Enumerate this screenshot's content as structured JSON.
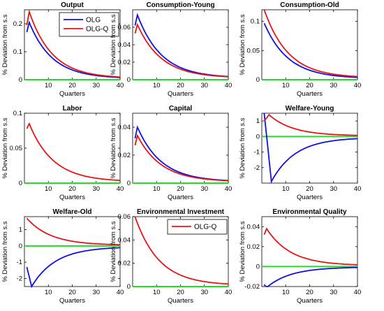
{
  "colors": {
    "OLG": "#1010e0",
    "OLG-Q": "#e61414",
    "zero": "#22dd22",
    "axis": "#000000"
  },
  "chart_data": [
    {
      "type": "line",
      "title": "Output",
      "xlabel": "Quarters",
      "ylabel": "% Deviation from s.s",
      "xlim": [
        0,
        40
      ],
      "ylim": [
        0,
        0.25
      ],
      "yticks": [
        0,
        0.1,
        0.2
      ],
      "xticks": [
        10,
        20,
        30,
        40
      ],
      "legend": {
        "position": "top-right",
        "entries": [
          "OLG",
          "OLG-Q"
        ]
      },
      "series": [
        {
          "name": "OLG",
          "peak": 0.205,
          "peak_q": 2,
          "start": 0.17,
          "end": 0.004,
          "decay": 0.104
        },
        {
          "name": "OLG-Q",
          "peak": 0.243,
          "peak_q": 2,
          "start": 0.195,
          "end": 0.005,
          "decay": 0.104
        }
      ]
    },
    {
      "type": "line",
      "title": "Consumption-Young",
      "xlabel": "Quarters",
      "ylabel": "% Deviation from s.s",
      "xlim": [
        0,
        40
      ],
      "ylim": [
        0,
        0.08
      ],
      "yticks": [
        0,
        0.02,
        0.04,
        0.06
      ],
      "xticks": [
        10,
        20,
        30,
        40
      ],
      "series": [
        {
          "name": "OLG",
          "peak": 0.074,
          "peak_q": 2,
          "start": 0.062,
          "end": 0.002,
          "decay": 0.1
        },
        {
          "name": "OLG-Q",
          "peak": 0.063,
          "peak_q": 2,
          "start": 0.053,
          "end": 0.002,
          "decay": 0.1
        }
      ]
    },
    {
      "type": "line",
      "title": "Consumption-Old",
      "xlabel": "Quarters",
      "ylabel": "% Deviation from s.s",
      "xlim": [
        0,
        40
      ],
      "ylim": [
        0,
        0.12
      ],
      "yticks": [
        0,
        0.05,
        0.1
      ],
      "xticks": [
        10,
        20,
        30,
        40
      ],
      "series": [
        {
          "name": "OLG",
          "peak": 0.097,
          "peak_q": 1,
          "start": 0.097,
          "end": 0.002,
          "decay": 0.1
        },
        {
          "name": "OLG-Q",
          "peak": 0.12,
          "peak_q": 1,
          "start": 0.12,
          "end": 0.003,
          "decay": 0.1
        }
      ]
    },
    {
      "type": "line",
      "title": "Labor",
      "xlabel": "Quarters",
      "ylabel": "% Deviation from s.s",
      "xlim": [
        0,
        40
      ],
      "ylim": [
        0,
        0.1
      ],
      "yticks": [
        0,
        0.05,
        0.1
      ],
      "xticks": [
        10,
        20,
        30,
        40
      ],
      "series": [
        {
          "name": "OLG-Q",
          "peak": 0.085,
          "peak_q": 2,
          "start": 0.078,
          "end": 0.002,
          "decay": 0.1
        }
      ]
    },
    {
      "type": "line",
      "title": "Capital",
      "xlabel": "Quarters",
      "ylabel": "% Deviation from s.s",
      "xlim": [
        0,
        40
      ],
      "ylim": [
        0,
        0.05
      ],
      "yticks": [
        0,
        0.02,
        0.04
      ],
      "xticks": [
        10,
        20,
        30,
        40
      ],
      "series": [
        {
          "name": "OLG",
          "peak": 0.04,
          "peak_q": 2,
          "start": 0.032,
          "end": 0.001,
          "decay": 0.1
        },
        {
          "name": "OLG-Q",
          "peak": 0.034,
          "peak_q": 2,
          "start": 0.027,
          "end": 0.001,
          "decay": 0.1
        }
      ]
    },
    {
      "type": "line",
      "title": "Welfare-Young",
      "xlabel": "Quarters",
      "ylabel": "% Deviation from s.s",
      "xlim": [
        0,
        40
      ],
      "ylim": [
        -3,
        1.5
      ],
      "yticks": [
        -2,
        -1,
        0,
        1
      ],
      "xticks": [
        10,
        20,
        30,
        40
      ],
      "series": [
        {
          "name": "OLG",
          "peak": -2.9,
          "peak_q": 4,
          "start": 1.5,
          "end": -0.06,
          "decay": 0.1
        },
        {
          "name": "OLG-Q",
          "peak": 1.4,
          "peak_q": 3,
          "start": 1.0,
          "end": 0.04,
          "decay": 0.1
        }
      ]
    },
    {
      "type": "line",
      "title": "Welfare-Old",
      "xlabel": "Quarters",
      "ylabel": "% Deviation from s.s",
      "xlim": [
        0,
        40
      ],
      "ylim": [
        -2.5,
        1.8
      ],
      "yticks": [
        -2,
        -1,
        0,
        1
      ],
      "xticks": [
        10,
        20,
        30,
        40
      ],
      "series": [
        {
          "name": "OLG",
          "peak": -2.5,
          "peak_q": 3,
          "start": -1.3,
          "end": -0.05,
          "decay": 0.1
        },
        {
          "name": "OLG-Q",
          "peak": 1.7,
          "peak_q": 1,
          "start": 1.7,
          "end": 0.04,
          "decay": 0.1
        }
      ]
    },
    {
      "type": "line",
      "title": "Environmental Investment",
      "xlabel": "Quarters",
      "ylabel": "% Deviation from s.s",
      "xlim": [
        0,
        40
      ],
      "ylim": [
        0,
        0.06
      ],
      "yticks": [
        0,
        0.02,
        0.04,
        0.06
      ],
      "xticks": [
        10,
        20,
        30,
        40
      ],
      "legend": {
        "position": "top-right",
        "entries": [
          "OLG-Q"
        ]
      },
      "series": [
        {
          "name": "OLG-Q",
          "peak": 0.06,
          "peak_q": 1,
          "start": 0.06,
          "end": 0.001,
          "decay": 0.1
        }
      ]
    },
    {
      "type": "line",
      "title": "Environmental Quality",
      "xlabel": "Quarters",
      "ylabel": "% Deviation from s.s",
      "xlim": [
        0,
        40
      ],
      "ylim": [
        -0.02,
        0.05
      ],
      "yticks": [
        -0.02,
        0,
        0.02,
        0.04
      ],
      "xticks": [
        10,
        20,
        30,
        40
      ],
      "series": [
        {
          "name": "OLG",
          "peak": -0.021,
          "peak_q": 2,
          "start": -0.018,
          "end": -0.0005,
          "decay": 0.1
        },
        {
          "name": "OLG-Q",
          "peak": 0.038,
          "peak_q": 2,
          "start": 0.032,
          "end": 0.001,
          "decay": 0.1
        }
      ]
    }
  ]
}
